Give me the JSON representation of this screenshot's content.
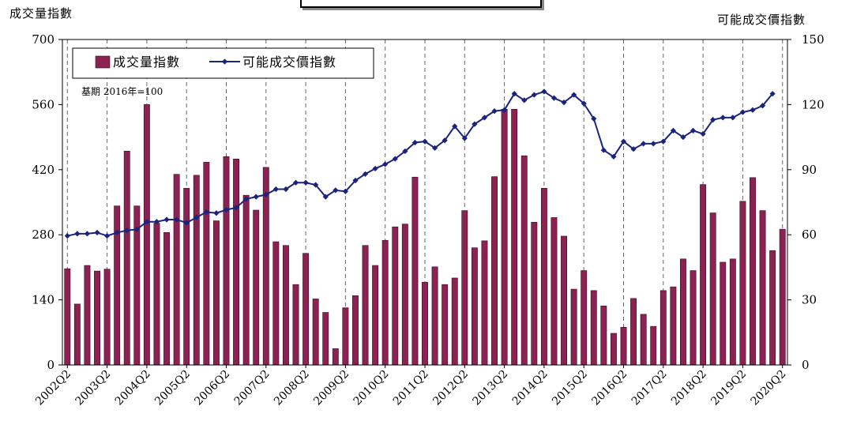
{
  "chart_data": {
    "type": "bar+line",
    "y_left_label": "成交量指數",
    "y_right_label": "可能成交價指數",
    "y_left_lim": [
      0,
      700
    ],
    "y_left_ticks": [
      0,
      140,
      280,
      420,
      560,
      700
    ],
    "y_right_lim": [
      0,
      150
    ],
    "y_right_ticks": [
      0,
      30,
      60,
      90,
      120,
      150
    ],
    "annotation": "基期 2016年=100",
    "legend": {
      "placement": "top-left",
      "bar_label": "成交量指數",
      "line_label": "可能成交價指數"
    },
    "x_tick_labels": [
      "2002Q2",
      "2003Q2",
      "2004Q2",
      "2005Q2",
      "2006Q2",
      "2007Q2",
      "2008Q2",
      "2009Q2",
      "2010Q2",
      "2011Q2",
      "2012Q2",
      "2013Q2",
      "2014Q2",
      "2015Q2",
      "2016Q2",
      "2017Q2",
      "2018Q2",
      "2019Q2",
      "2020Q2"
    ],
    "colors": {
      "bar": "#8b2252",
      "line": "#1a237e"
    },
    "grid": "vertical dashed at each Q2",
    "series": [
      {
        "name": "成交量指數",
        "type": "bar",
        "values": [
          207,
          131,
          214,
          202,
          206,
          342,
          460,
          342,
          560,
          305,
          285,
          410,
          380,
          408,
          436,
          310,
          448,
          443,
          365,
          333,
          425,
          265,
          257,
          173,
          240,
          142,
          113,
          35,
          123,
          149,
          257,
          214,
          268,
          297,
          303,
          404,
          178,
          211,
          173,
          187,
          332,
          252,
          267,
          405,
          550,
          550,
          450,
          307,
          380,
          317,
          277,
          163,
          203,
          160,
          127,
          68,
          81,
          143,
          109,
          83,
          160,
          168,
          228,
          203,
          388,
          327,
          221,
          228,
          352,
          403,
          332,
          246,
          292
        ]
      },
      {
        "name": "可能成交價指數",
        "type": "line",
        "values": [
          59.5,
          60.5,
          60.5,
          61,
          59.5,
          61,
          62,
          62.5,
          66,
          66,
          67,
          67,
          65.5,
          68,
          70.5,
          70,
          71.5,
          72.5,
          76.5,
          77.5,
          78.5,
          81,
          81,
          84,
          84,
          83,
          77.5,
          80.5,
          80,
          85,
          88,
          90.5,
          92.5,
          95,
          98.5,
          102.5,
          103,
          100,
          103.5,
          110,
          104.5,
          111,
          114,
          117,
          117.5,
          125,
          122,
          124.5,
          126,
          123,
          121,
          124.5,
          120.5,
          113.5,
          99,
          96,
          103,
          99.5,
          102,
          102,
          103,
          108,
          105,
          108,
          106.5,
          113,
          114,
          114,
          116.5,
          117.5,
          119.5,
          125
        ]
      }
    ]
  }
}
